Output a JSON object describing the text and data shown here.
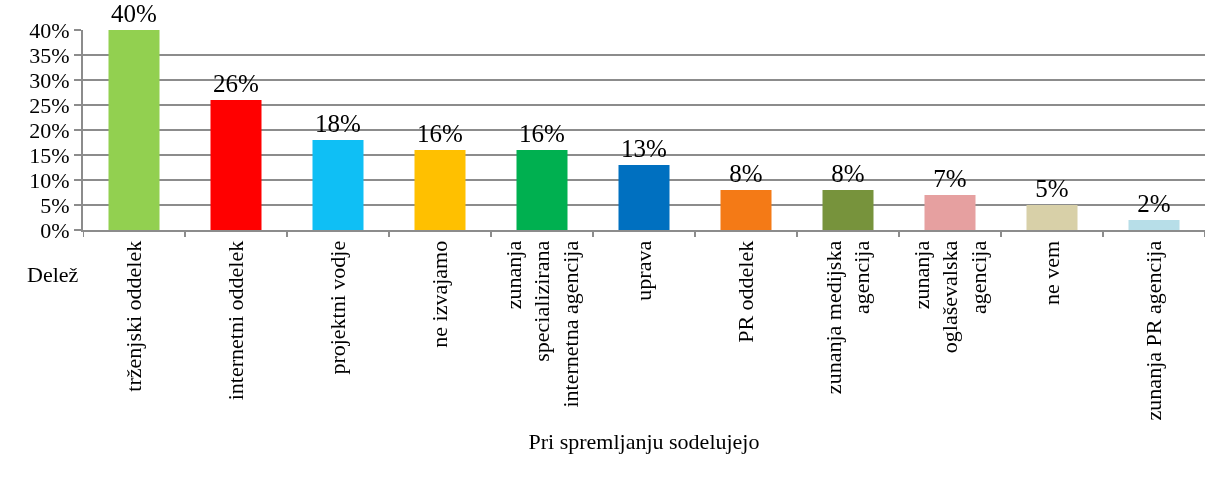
{
  "chart_data": {
    "type": "bar",
    "xlabel": "Pri spremljanju sodelujejo",
    "annotations": [
      "Delež"
    ],
    "categories": [
      "trženjski oddelek",
      "internetni oddelek",
      "projektni vodje",
      "ne izvajamo",
      "zunanja\nspecializirana\ninternetna agencija",
      "uprava",
      "PR oddelek",
      "zunanja medijska\nagencija",
      "zunanja\noglaševalska\nagencija",
      "ne vem",
      "zunanja PR agencija"
    ],
    "values": [
      40,
      26,
      18,
      16,
      16,
      13,
      8,
      8,
      7,
      5,
      2
    ],
    "value_labels": [
      "40%",
      "26%",
      "18%",
      "16%",
      "16%",
      "13%",
      "8%",
      "8%",
      "7%",
      "5%",
      "2%"
    ],
    "colors": [
      "#92d050",
      "#ff0000",
      "#0fbff5",
      "#ffc000",
      "#00b050",
      "#0070c0",
      "#f47a16",
      "#77933c",
      "#e6a0a0",
      "#d8d0a8",
      "#b7dee8"
    ],
    "ylim": [
      0,
      40
    ],
    "yticks": [
      {
        "value": 0,
        "label": "0%"
      },
      {
        "value": 5,
        "label": "5%"
      },
      {
        "value": 10,
        "label": "10%"
      },
      {
        "value": 15,
        "label": "15%"
      },
      {
        "value": 20,
        "label": "20%"
      },
      {
        "value": 25,
        "label": "25%"
      },
      {
        "value": 30,
        "label": "30%"
      },
      {
        "value": 35,
        "label": "35%"
      },
      {
        "value": 40,
        "label": "40%"
      }
    ],
    "grid": "y",
    "legend": false
  }
}
